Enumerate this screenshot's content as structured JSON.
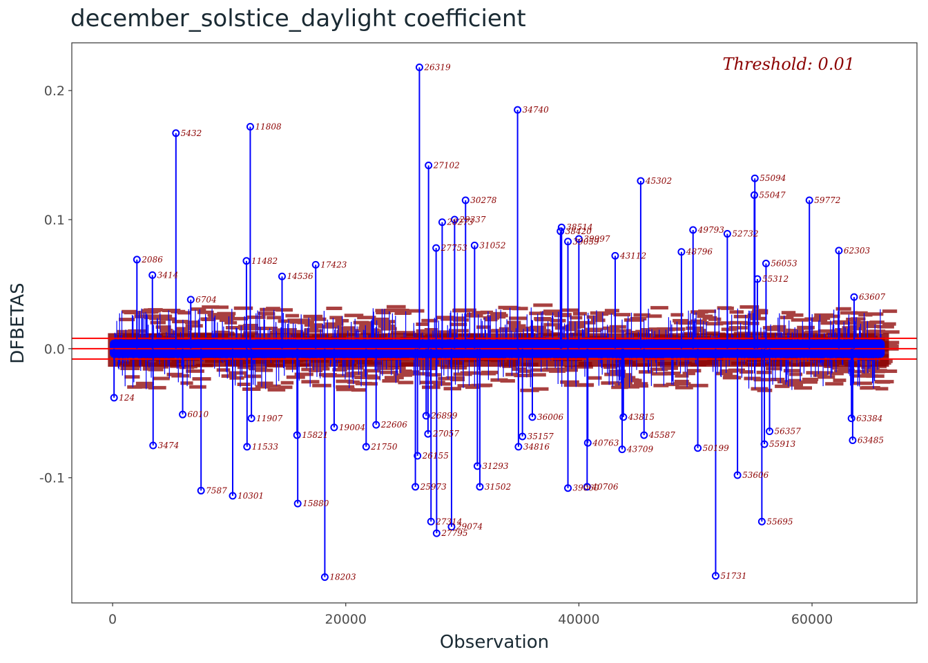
{
  "chart_data": {
    "type": "scatter",
    "title": "december_solstice_daylight coefficient",
    "xlabel": "Observation",
    "ylabel": "DFBETAS",
    "annotation": "Threshold: 0.01",
    "xlim": [
      -3500,
      69000
    ],
    "ylim": [
      -0.197,
      0.237
    ],
    "x_ticks": [
      0,
      20000,
      40000,
      60000
    ],
    "y_ticks": [
      -0.1,
      0.0,
      0.1,
      0.2
    ],
    "y_tick_labels": [
      "-0.1",
      "0.0",
      "0.1",
      "0.2"
    ],
    "threshold_lines": [
      0.008,
      0.0,
      -0.008
    ],
    "n_observations": 66000,
    "colors": {
      "stem": "#0000ff",
      "point": "#0000ff",
      "label": "#8b0000",
      "threshold": "#ff0000",
      "axis_text": "#4d4d4d",
      "title": "#1a2a33"
    },
    "labeled_points": [
      {
        "x": 26319,
        "y": 0.218,
        "label": "26319"
      },
      {
        "x": 34740,
        "y": 0.185,
        "label": "34740"
      },
      {
        "x": 11808,
        "y": 0.172,
        "label": "11808"
      },
      {
        "x": 5432,
        "y": 0.167,
        "label": "5432"
      },
      {
        "x": 27102,
        "y": 0.142,
        "label": "27102"
      },
      {
        "x": 55094,
        "y": 0.132,
        "label": "55094"
      },
      {
        "x": 45302,
        "y": 0.13,
        "label": "45302"
      },
      {
        "x": 55047,
        "y": 0.119,
        "label": "55047"
      },
      {
        "x": 30278,
        "y": 0.115,
        "label": "30278"
      },
      {
        "x": 59772,
        "y": 0.115,
        "label": "59772"
      },
      {
        "x": 29337,
        "y": 0.1,
        "label": "29337"
      },
      {
        "x": 28273,
        "y": 0.098,
        "label": "28273"
      },
      {
        "x": 38514,
        "y": 0.094,
        "label": "38514"
      },
      {
        "x": 49793,
        "y": 0.092,
        "label": "49793"
      },
      {
        "x": 38420,
        "y": 0.091,
        "label": "38420"
      },
      {
        "x": 52732,
        "y": 0.089,
        "label": "52732"
      },
      {
        "x": 39997,
        "y": 0.085,
        "label": "39997"
      },
      {
        "x": 39059,
        "y": 0.083,
        "label": "39059"
      },
      {
        "x": 31052,
        "y": 0.08,
        "label": "31052"
      },
      {
        "x": 27753,
        "y": 0.078,
        "label": "27753"
      },
      {
        "x": 62303,
        "y": 0.076,
        "label": "62303"
      },
      {
        "x": 48796,
        "y": 0.075,
        "label": "48796"
      },
      {
        "x": 43112,
        "y": 0.072,
        "label": "43112"
      },
      {
        "x": 2086,
        "y": 0.069,
        "label": "2086"
      },
      {
        "x": 11482,
        "y": 0.068,
        "label": "11482"
      },
      {
        "x": 56053,
        "y": 0.066,
        "label": "56053"
      },
      {
        "x": 17423,
        "y": 0.065,
        "label": "17423"
      },
      {
        "x": 3414,
        "y": 0.057,
        "label": "3414"
      },
      {
        "x": 55312,
        "y": 0.054,
        "label": "55312"
      },
      {
        "x": 14536,
        "y": 0.056,
        "label": "14536"
      },
      {
        "x": 6704,
        "y": 0.038,
        "label": "6704"
      },
      {
        "x": 63607,
        "y": 0.04,
        "label": "63607"
      },
      {
        "x": 18203,
        "y": -0.177,
        "label": "18203"
      },
      {
        "x": 51731,
        "y": -0.176,
        "label": "51731"
      },
      {
        "x": 27795,
        "y": -0.143,
        "label": "27795"
      },
      {
        "x": 29074,
        "y": -0.138,
        "label": "29074"
      },
      {
        "x": 27314,
        "y": -0.134,
        "label": "27314"
      },
      {
        "x": 55695,
        "y": -0.134,
        "label": "55695"
      },
      {
        "x": 15880,
        "y": -0.12,
        "label": "15880"
      },
      {
        "x": 10301,
        "y": -0.114,
        "label": "10301"
      },
      {
        "x": 7587,
        "y": -0.11,
        "label": "7587"
      },
      {
        "x": 39060,
        "y": -0.108,
        "label": "39060"
      },
      {
        "x": 40706,
        "y": -0.107,
        "label": "40706"
      },
      {
        "x": 25973,
        "y": -0.107,
        "label": "25973"
      },
      {
        "x": 31502,
        "y": -0.107,
        "label": "31502"
      },
      {
        "x": 53606,
        "y": -0.098,
        "label": "53606"
      },
      {
        "x": 31293,
        "y": -0.091,
        "label": "31293"
      },
      {
        "x": 26155,
        "y": -0.083,
        "label": "26155"
      },
      {
        "x": 43709,
        "y": -0.078,
        "label": "43709"
      },
      {
        "x": 50199,
        "y": -0.077,
        "label": "50199"
      },
      {
        "x": 21750,
        "y": -0.076,
        "label": "21750"
      },
      {
        "x": 11533,
        "y": -0.076,
        "label": "11533"
      },
      {
        "x": 34816,
        "y": -0.076,
        "label": "34816"
      },
      {
        "x": 3474,
        "y": -0.075,
        "label": "3474"
      },
      {
        "x": 55913,
        "y": -0.074,
        "label": "55913"
      },
      {
        "x": 40763,
        "y": -0.073,
        "label": "40763"
      },
      {
        "x": 63485,
        "y": -0.071,
        "label": "63485"
      },
      {
        "x": 35157,
        "y": -0.068,
        "label": "35157"
      },
      {
        "x": 15821,
        "y": -0.067,
        "label": "15821"
      },
      {
        "x": 45587,
        "y": -0.067,
        "label": "45587"
      },
      {
        "x": 27057,
        "y": -0.066,
        "label": "27057"
      },
      {
        "x": 56357,
        "y": -0.064,
        "label": "56357"
      },
      {
        "x": 63384,
        "y": -0.054,
        "label": "63384"
      },
      {
        "x": 6010,
        "y": -0.051,
        "label": "6010"
      },
      {
        "x": 11907,
        "y": -0.054,
        "label": "11907"
      },
      {
        "x": 36006,
        "y": -0.053,
        "label": "36006"
      },
      {
        "x": 19004,
        "y": -0.061,
        "label": "19004"
      },
      {
        "x": 43815,
        "y": -0.053,
        "label": "43815"
      },
      {
        "x": 26899,
        "y": -0.052,
        "label": "26899"
      },
      {
        "x": 22606,
        "y": -0.059,
        "label": "22606"
      },
      {
        "x": 124,
        "y": -0.038,
        "label": "124"
      }
    ]
  }
}
